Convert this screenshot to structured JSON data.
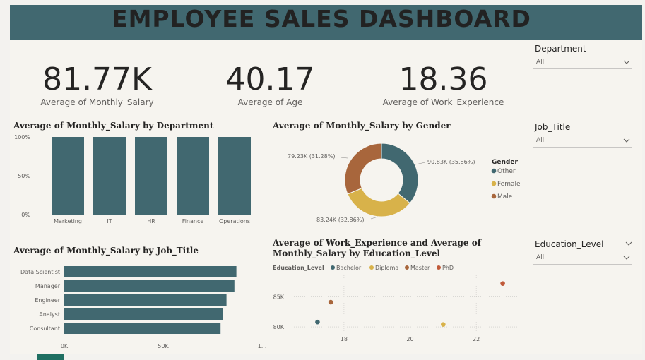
{
  "header": {
    "title": "EMPLOYEE SALES DASHBOARD"
  },
  "colors": {
    "teal": "#416870",
    "gold": "#d8b24a",
    "brown": "#a8663c",
    "orange": "#c05a3a"
  },
  "kpis": [
    {
      "value": "81.77K",
      "label": "Average of Monthly_Salary"
    },
    {
      "value": "40.17",
      "label": "Average of Age"
    },
    {
      "value": "18.36",
      "label": "Average of Work_Experience"
    }
  ],
  "slicers": [
    {
      "label": "Department",
      "value": "All"
    },
    {
      "label": "Job_Title",
      "value": "All"
    },
    {
      "label": "Education_Level",
      "value": "All"
    }
  ],
  "chart_data": [
    {
      "type": "bar",
      "title": "Average of Monthly_Salary by Department",
      "categories": [
        "Marketing",
        "IT",
        "HR",
        "Finance",
        "Operations"
      ],
      "values": [
        100,
        100,
        100,
        100,
        100
      ],
      "yticks": [
        "100%",
        "50%",
        "0%"
      ],
      "ylim": [
        0,
        100
      ]
    },
    {
      "type": "pie",
      "title": "Average of Monthly_Salary by Gender",
      "legend_title": "Gender",
      "labels": [
        "Other",
        "Female",
        "Male"
      ],
      "values": [
        90.83,
        83.24,
        79.23
      ],
      "data_labels": [
        "90.83K (35.86%)",
        "83.24K (32.86%)",
        "79.23K (31.28%)"
      ]
    },
    {
      "type": "bar",
      "orientation": "horizontal",
      "title": "Average of Monthly_Salary by Job_Title",
      "categories": [
        "Data Scientist",
        "Manager",
        "Engineer",
        "Analyst",
        "Consultant"
      ],
      "values": [
        87,
        86,
        82,
        80,
        79
      ],
      "xticks": [
        "0K",
        "50K",
        "1..."
      ],
      "xlim": [
        0,
        100
      ]
    },
    {
      "type": "scatter",
      "title": "Average of Work_Experience and Average of Monthly_Salary by Education_Level",
      "legend_title": "Education_Level",
      "series": [
        {
          "name": "Bachelor",
          "x": [
            17.2
          ],
          "y": [
            80.8
          ]
        },
        {
          "name": "Diploma",
          "x": [
            21.0
          ],
          "y": [
            80.4
          ]
        },
        {
          "name": "Master",
          "x": [
            17.6
          ],
          "y": [
            84.1
          ]
        },
        {
          "name": "PhD",
          "x": [
            22.8
          ],
          "y": [
            87.2
          ]
        }
      ],
      "xticks": [
        "18",
        "20",
        "22"
      ],
      "yticks": [
        "85K",
        "80K"
      ]
    }
  ]
}
